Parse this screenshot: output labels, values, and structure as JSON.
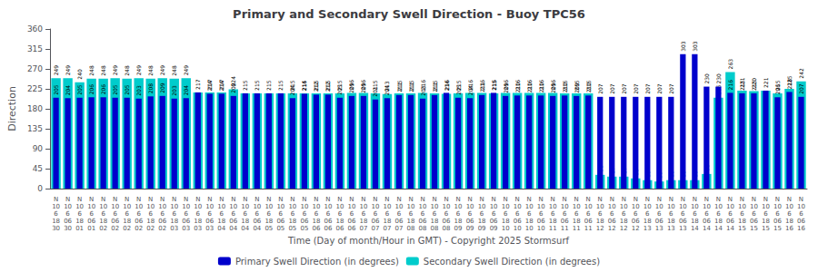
{
  "chart_data": {
    "type": "bar",
    "title": "Primary and Secondary Swell Direction - Buoy TPC56",
    "xlabel": "Time (Day of month/Hour in GMT) - Copyright 2025 Stormsurf",
    "ylabel": "Direction",
    "categories": [
      "N\n10\n6\n18\n30",
      "N\n10\n6\n06\n30",
      "N\n10\n6\n18\n01",
      "N\n10\n6\n06\n01",
      "N\n10\n6\n18\n02",
      "N\n10\n6\n06\n02",
      "N\n10\n6\n18\n02",
      "N\n10\n6\n06\n02",
      "N\n10\n6\n18\n02",
      "N\n10\n6\n06\n02",
      "N\n10\n6\n18\n03",
      "N\n10\n6\n06\n03",
      "N\n10\n6\n18\n03",
      "N\n10\n6\n06\n03",
      "N\n10\n6\n18\n04",
      "N\n10\n6\n06\n04",
      "N\n10\n6\n18\n04",
      "N\n10\n6\n06\n04",
      "N\n10\n6\n18\n05",
      "N\n10\n6\n06\n05",
      "N\n10\n6\n18\n05",
      "N\n10\n6\n06\n05",
      "N\n10\n6\n18\n06",
      "N\n10\n6\n06\n06",
      "N\n10\n6\n18\n06",
      "N\n10\n6\n06\n06",
      "N\n10\n6\n18\n07",
      "N\n10\n6\n06\n07",
      "N\n10\n6\n18\n07",
      "N\n10\n6\n06\n07",
      "N\n10\n6\n18\n08",
      "N\n10\n6\n06\n08",
      "N\n10\n6\n18\n08",
      "N\n10\n6\n06\n08",
      "N\n10\n6\n18\n09",
      "N\n10\n6\n06\n09",
      "N\n10\n6\n18\n09",
      "N\n10\n6\n06\n09",
      "N\n10\n6\n18\n10",
      "N\n10\n6\n06\n10",
      "N\n10\n6\n18\n10",
      "N\n10\n6\n06\n10",
      "N\n10\n6\n18\n11",
      "N\n10\n6\n06\n11",
      "N\n10\n6\n18\n11",
      "N\n10\n6\n06\n11",
      "N\n10\n6\n18\n12",
      "N\n10\n6\n06\n12",
      "N\n10\n6\n18\n12",
      "N\n10\n6\n06\n12",
      "N\n10\n6\n18\n13",
      "N\n10\n6\n06\n13",
      "N\n10\n6\n18\n13",
      "N\n10\n6\n06\n13",
      "N\n10\n6\n18\n14",
      "N\n10\n6\n06\n14",
      "N\n10\n6\n18\n14",
      "N\n10\n6\n06\n14",
      "N\n10\n6\n18\n15",
      "N\n10\n6\n06\n15",
      "N\n10\n6\n18\n15",
      "N\n10\n6\n06\n15",
      "N\n10\n6\n18\n16",
      "N\n10\n6\n06\n16"
    ],
    "series": [
      {
        "name": "Primary Swell Direction (in degrees)",
        "color": "#0000CC",
        "values": [
          205,
          204,
          205,
          206,
          206,
          205,
          205,
          203,
          208,
          209,
          203,
          204,
          217,
          214,
          214,
          209,
          215,
          215,
          215,
          215,
          204,
          214,
          212,
          212,
          205,
          209,
          209,
          201,
          204,
          211,
          211,
          203,
          211,
          216,
          205,
          204,
          211,
          216,
          209,
          210,
          210,
          210,
          209,
          210,
          209,
          210,
          207,
          207,
          207,
          207,
          207,
          207,
          207,
          303,
          303,
          230,
          230,
          216,
          215,
          215,
          221,
          206,
          218,
          207
        ]
      },
      {
        "name": "Secondary Swell Direction (in degrees)",
        "color": "#00CCCC",
        "values": [
          249,
          249,
          240,
          248,
          248,
          249,
          248,
          249,
          248,
          249,
          248,
          249,
          217,
          217,
          217,
          224,
          215,
          215,
          215,
          215,
          215,
          215,
          215,
          215,
          215,
          216,
          216,
          215,
          213,
          215,
          215,
          216,
          215,
          214,
          215,
          216,
          216,
          215,
          216,
          216,
          216,
          216,
          216,
          215,
          215,
          215,
          31,
          27,
          27,
          23,
          19,
          16,
          19,
          19,
          19,
          33,
          205,
          263,
          221,
          220,
          221,
          215,
          225,
          242
        ]
      }
    ],
    "ylim": [
      0,
      360
    ],
    "yticks": [
      0,
      45,
      90,
      135,
      180,
      225,
      270,
      315,
      360
    ],
    "grid": false,
    "legend": "bottom",
    "data_labels": true
  }
}
